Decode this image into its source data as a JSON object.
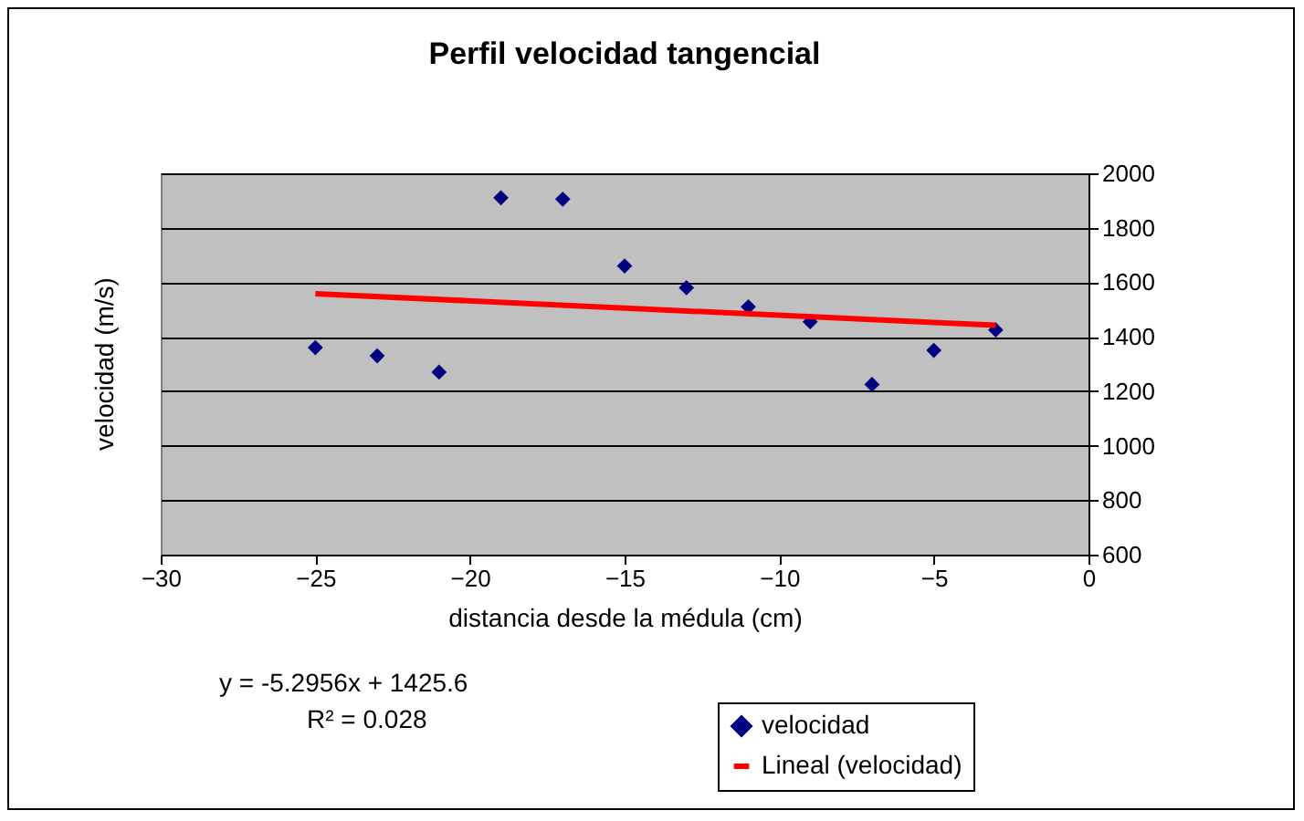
{
  "chart_data": {
    "type": "scatter",
    "title": "Perfil velocidad tangencial",
    "xlabel": "distancia desde la médula (cm)",
    "ylabel": "velocidad (m/s)",
    "x": [
      -25,
      -23,
      -21,
      -19,
      -17,
      -15,
      -13,
      -11,
      -9,
      -7,
      -5,
      -3
    ],
    "series": [
      {
        "name": "velocidad",
        "color": "#000080",
        "marker": "diamond",
        "values": [
          1360,
          1330,
          1270,
          1910,
          1905,
          1660,
          1580,
          1510,
          1455,
          1225,
          1350,
          1425
        ]
      },
      {
        "name": "Lineal (velocidad)",
        "color": "#ff0000",
        "type": "line",
        "x": [
          -25,
          -3
        ],
        "values": [
          1558,
          1442
        ]
      }
    ],
    "xlim": [
      -30,
      0
    ],
    "xticks": [
      -30,
      -25,
      -20,
      -15,
      -10,
      -5,
      0
    ],
    "ylim": [
      600,
      2000
    ],
    "yticks": [
      600,
      800,
      1000,
      1200,
      1400,
      1600,
      1800,
      2000
    ],
    "grid": "y",
    "legend": "bottom right",
    "annotations": [
      "y = -5.2956x + 1425.6",
      "R² = 0.028"
    ]
  }
}
